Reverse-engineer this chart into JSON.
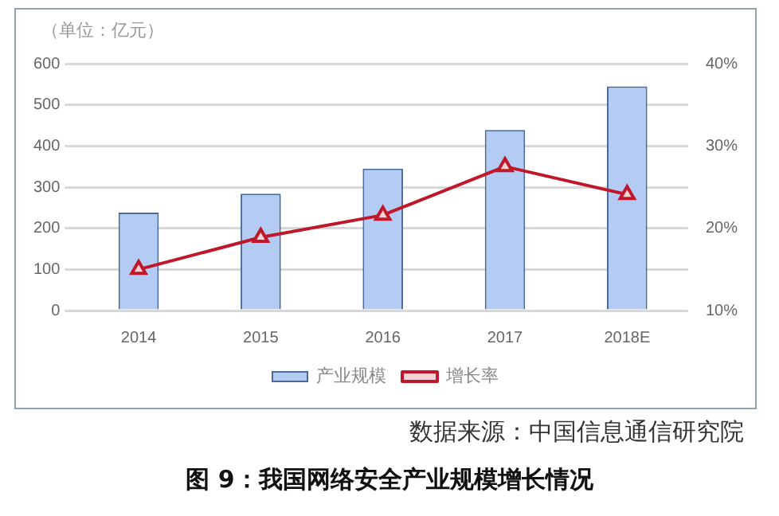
{
  "chart_data": {
    "type": "bar",
    "title": "图 9：我国网络安全产业规模增长情况",
    "ylabel": "（单位：亿元）",
    "annotations": [
      "数据来源：中国信息通信研究院"
    ],
    "categories": [
      "2014",
      "2015",
      "2016",
      "2017",
      "2018E"
    ],
    "series": [
      {
        "name": "产业规模",
        "color": "#b4cbf3",
        "values": [
          238,
          284,
          345,
          439,
          545
        ]
      },
      {
        "name": "增长率",
        "type": "line",
        "axis": "y2",
        "color": "#c0182a",
        "values": [
          15,
          18.9,
          21.6,
          27.5,
          24.1
        ]
      }
    ],
    "ylim": [
      0,
      600
    ],
    "yticks": [
      0,
      100,
      200,
      300,
      400,
      500,
      600
    ],
    "y2lim": [
      10,
      40
    ],
    "y2ticks": [
      {
        "value": 10,
        "label": "10%"
      },
      {
        "value": 20,
        "label": "20%"
      },
      {
        "value": 30,
        "label": "30%"
      },
      {
        "value": 40,
        "label": "40%"
      }
    ],
    "grid": "y",
    "legend": "bottom",
    "marker": "triangle",
    "line_style": "solid"
  }
}
